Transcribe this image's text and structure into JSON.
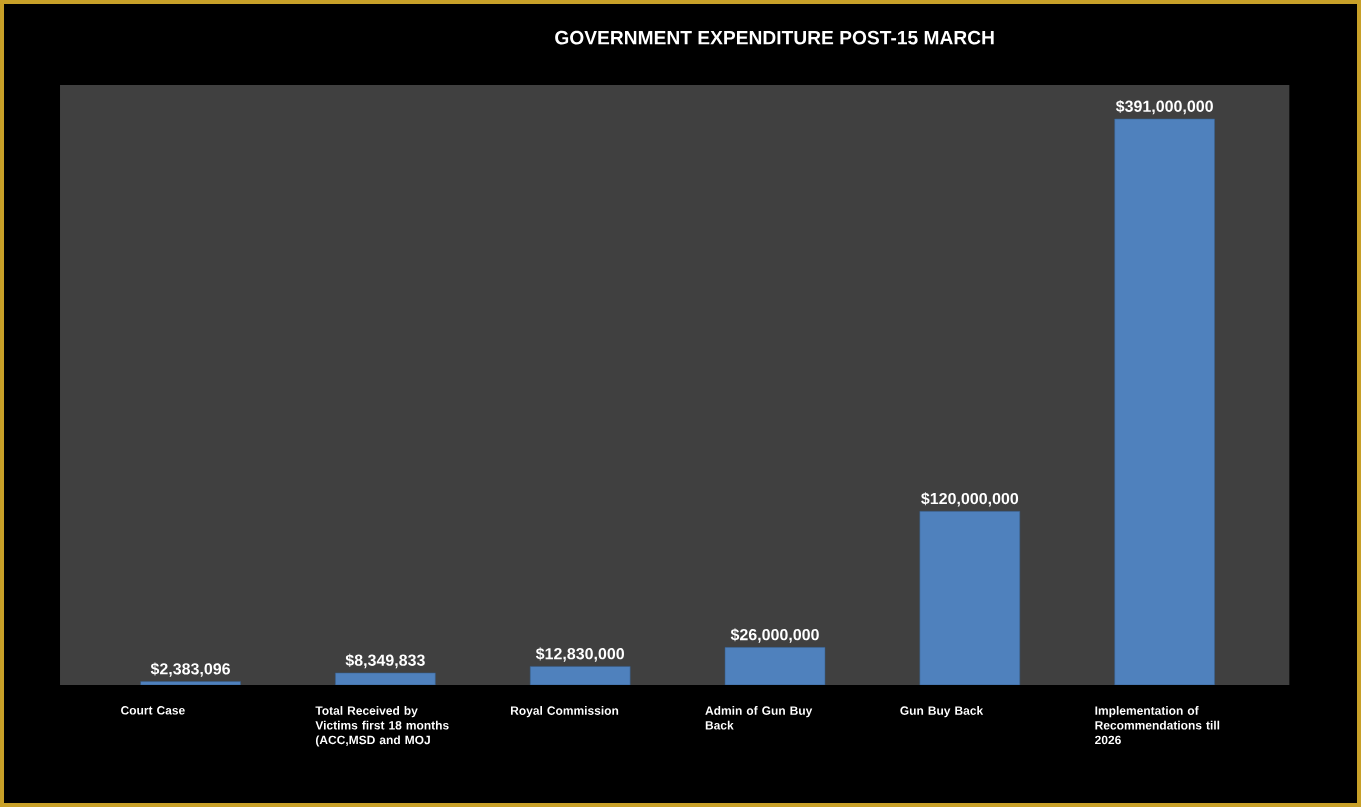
{
  "chart_data": {
    "type": "bar",
    "title": "GOVERNMENT EXPENDITURE POST-15 MARCH",
    "categories": [
      "Court Case",
      "Total Received by Victims first 18 months (ACC,MSD and MOJ",
      "Royal Commission",
      "Admin of Gun Buy Back",
      "Gun Buy Back",
      "Implementation of Recommendations till 2026"
    ],
    "values": [
      2383096,
      8349833,
      12830000,
      26000000,
      120000000,
      391000000
    ],
    "value_labels": [
      "$2,383,096",
      "$8,349,833",
      "$12,830,000",
      "$26,000,000",
      "$120,000,000",
      "$391,000,000"
    ],
    "color": "#4f81bd"
  }
}
